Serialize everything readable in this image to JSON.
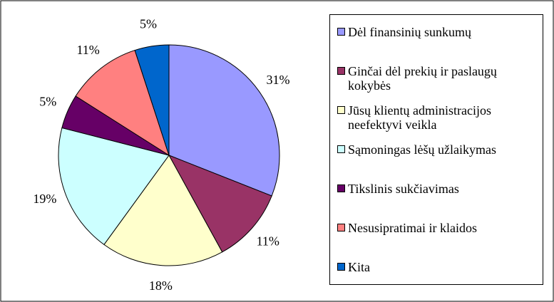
{
  "chart_data": {
    "type": "pie",
    "categories": [
      "Dėl finansinių sunkumų",
      "Ginčai dėl prekių ir paslaugų kokybės",
      "Jūsų klientų administracijos neefektyvi veikla",
      "Sąmoningas lėšų užlaikymas",
      "Tikslinis sukčiavimas",
      "Nesusipratimai ir klaidos",
      "Kita"
    ],
    "values": [
      31,
      11,
      18,
      19,
      5,
      11,
      5
    ],
    "value_labels": [
      "31%",
      "11%",
      "18%",
      "19%",
      "5%",
      "11%",
      "5%"
    ],
    "colors": [
      "#9999ff",
      "#993366",
      "#ffffcc",
      "#ccffff",
      "#660066",
      "#ff8080",
      "#0066cc"
    ],
    "legend": "right"
  }
}
